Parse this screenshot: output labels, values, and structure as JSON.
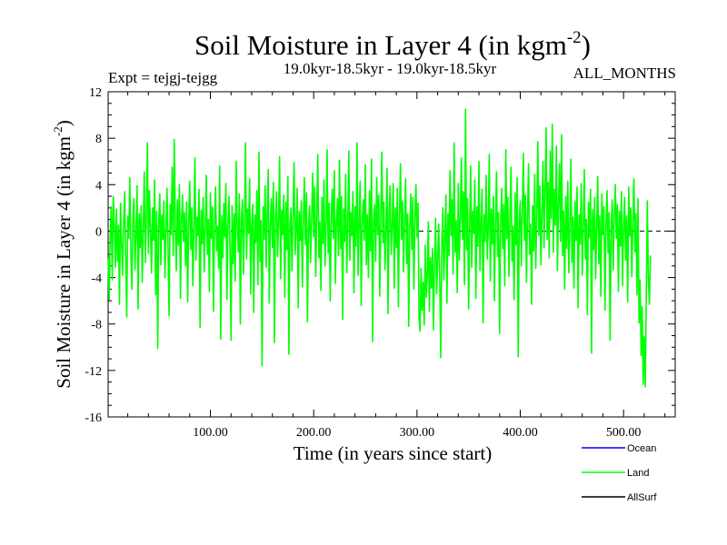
{
  "chart_data": {
    "type": "line",
    "title_main": "Soil Moisture in Layer 4 (in kgm",
    "title_sup": "-2",
    "title_close": ")",
    "subtitle_left": "Expt = tejgj-tejgg",
    "subtitle_center": "19.0kyr-18.5kyr - 19.0kyr-18.5kyr",
    "subtitle_right": "ALL_MONTHS",
    "xlabel": "Time (in years since start)",
    "ylabel_main": "Soil Moisture in Layer 4 (in kgm",
    "ylabel_sup": "-2",
    "ylabel_close": ")",
    "xlim": [
      1,
      550
    ],
    "ylim": [
      -16,
      12
    ],
    "x_ticks": [
      100,
      200,
      300,
      400,
      500
    ],
    "x_tick_labels": [
      "100.00",
      "200.00",
      "300.00",
      "400.00",
      "500.00"
    ],
    "y_ticks": [
      12,
      8,
      4,
      0,
      -4,
      -8,
      -12,
      -16
    ],
    "y_tick_labels": [
      "12",
      "8",
      "4",
      "0",
      "-4",
      "-8",
      "-12",
      "-16"
    ],
    "zero_line": "dashed",
    "legend": [
      {
        "name": "Ocean",
        "color": "#0000ff"
      },
      {
        "name": "Land",
        "color": "#00ff00"
      },
      {
        "name": "AllSurf",
        "color": "#000000"
      }
    ],
    "series": [
      {
        "name": "Land",
        "color": "#00ff00",
        "x_start": 1,
        "x_step": 1,
        "values": [
          -2.4,
          -5.9,
          -0.4,
          2.1,
          -4.2,
          3.0,
          0.8,
          -3.1,
          1.9,
          -2.6,
          0.5,
          -6.3,
          2.4,
          -1.0,
          -3.8,
          0.7,
          3.4,
          -2.2,
          -7.4,
          1.3,
          -0.6,
          4.6,
          -1.8,
          -5.0,
          0.9,
          2.8,
          -3.3,
          -0.2,
          3.9,
          -6.7,
          1.5,
          -1.4,
          2.2,
          -4.4,
          0.3,
          5.1,
          -2.7,
          1.1,
          7.6,
          -1.9,
          3.5,
          0.2,
          -3.6,
          2.0,
          -0.8,
          4.4,
          -5.5,
          1.7,
          -10.1,
          0.6,
          3.2,
          -2.9,
          1.4,
          -0.7,
          2.6,
          -4.0,
          0.1,
          3.7,
          -1.5,
          -7.3,
          2.3,
          -0.3,
          5.5,
          -2.1,
          7.9,
          0.4,
          -3.4,
          2.7,
          -1.2,
          4.0,
          -5.8,
          0.8,
          3.1,
          -0.9,
          1.6,
          -3.0,
          2.5,
          -6.1,
          0.7,
          4.3,
          -1.6,
          2.0,
          -4.7,
          0.5,
          6.3,
          -2.5,
          1.2,
          -0.4,
          3.6,
          -8.3,
          1.8,
          -1.1,
          2.9,
          -3.5,
          0.2,
          4.8,
          -2.0,
          1.0,
          -5.2,
          3.3,
          -0.6,
          2.1,
          -6.9,
          0.9,
          3.8,
          -1.7,
          0.4,
          -3.2,
          5.6,
          -9.3,
          1.3,
          -2.3,
          2.4,
          -0.5,
          4.1,
          -5.9,
          0.6,
          3.0,
          -1.3,
          -9.4,
          2.2,
          -2.8,
          1.5,
          -4.3,
          6.0,
          0.3,
          -1.8,
          3.2,
          -8.0,
          1.1,
          2.7,
          -3.7,
          0.8,
          7.6,
          -2.4,
          1.9,
          -0.2,
          4.5,
          -5.4,
          0.5,
          2.3,
          -7.0,
          1.4,
          -1.0,
          3.5,
          -4.6,
          6.8,
          -2.6,
          0.9,
          -11.6,
          2.1,
          -0.7,
          3.9,
          -3.1,
          1.6,
          5.3,
          -6.2,
          0.4,
          2.8,
          -1.4,
          4.2,
          -9.6,
          1.0,
          3.4,
          -2.2,
          0.7,
          6.4,
          -4.1,
          1.8,
          -0.3,
          3.1,
          -5.7,
          2.5,
          -1.6,
          4.7,
          -10.6,
          0.6,
          2.0,
          -3.4,
          1.3,
          5.9,
          -2.0,
          0.2,
          3.7,
          -6.6,
          1.7,
          -0.8,
          2.6,
          -4.8,
          0.9,
          4.6,
          -1.2,
          3.3,
          -7.8,
          0.5,
          2.2,
          -2.7,
          1.1,
          5.0,
          -0.5,
          3.8,
          -3.9,
          1.5,
          6.6,
          -2.3,
          0.8,
          -5.1,
          2.9,
          -1.1,
          4.4,
          -3.0,
          0.3,
          7.0,
          -1.9,
          2.4,
          -6.0,
          1.2,
          3.6,
          -0.6,
          5.2,
          -4.5,
          0.7,
          2.8,
          -2.1,
          6.1,
          -1.5,
          3.0,
          -7.6,
          1.9,
          -0.9,
          4.9,
          -3.6,
          0.4,
          6.9,
          -2.5,
          1.6,
          -0.4,
          3.4,
          -5.3,
          2.1,
          -1.3,
          7.6,
          -3.8,
          0.6,
          4.3,
          -6.4,
          1.0,
          2.7,
          -0.8,
          5.7,
          -2.9,
          1.4,
          -4.0,
          3.5,
          -1.7,
          6.2,
          -9.5,
          0.8,
          2.3,
          -2.6,
          4.6,
          -0.3,
          3.1,
          -5.6,
          1.3,
          6.8,
          -1.0,
          2.5,
          -3.3,
          0.2,
          5.4,
          -7.1,
          1.7,
          3.9,
          -2.0,
          0.5,
          4.1,
          -4.9,
          2.0,
          -1.4,
          3.7,
          -6.5,
          1.1,
          5.8,
          -0.7,
          2.6,
          -3.5,
          0.9,
          4.5,
          -2.8,
          1.5,
          -8.2,
          0.3,
          3.2,
          -1.6,
          2.9,
          -5.0,
          1.0,
          4.0,
          -0.5,
          2.4,
          -7.5,
          -8.6,
          -3.2,
          -6.8,
          -4.4,
          -8.1,
          -1.2,
          -5.7,
          -3.6,
          0.8,
          -6.9,
          -2.3,
          -4.9,
          -1.5,
          -8.5,
          -3.0,
          1.1,
          -5.4,
          -2.7,
          0.6,
          -3.9,
          -10.9,
          -1.4,
          2.0,
          -4.2,
          -0.9,
          3.1,
          -6.2,
          1.5,
          -2.1,
          5.2,
          -0.4,
          2.7,
          -3.7,
          7.6,
          -1.8,
          0.9,
          -5.3,
          4.1,
          -2.5,
          1.2,
          6.3,
          -0.7,
          3.4,
          -4.6,
          10.5,
          -1.6,
          2.8,
          -6.7,
          0.4,
          5.6,
          -3.1,
          1.7,
          -0.2,
          4.4,
          -5.8,
          2.1,
          -1.3,
          6.0,
          -3.4,
          0.7,
          3.6,
          -7.9,
          1.4,
          -0.9,
          4.8,
          -2.4,
          0.3,
          6.6,
          -4.3,
          1.9,
          -1.1,
          3.0,
          -6.0,
          0.8,
          5.1,
          -2.2,
          1.6,
          -8.8,
          0.5,
          3.7,
          -1.5,
          2.3,
          -4.7,
          7.0,
          -0.6,
          2.9,
          -3.9,
          1.2,
          5.5,
          -2.6,
          0.4,
          -5.9,
          3.3,
          -1.2,
          4.6,
          -10.8,
          0.9,
          2.6,
          -3.0,
          1.8,
          6.7,
          -0.8,
          3.1,
          -4.4,
          1.3,
          5.8,
          -2.0,
          0.6,
          -6.3,
          2.2,
          -1.7,
          4.9,
          -3.2,
          1.0,
          7.7,
          -0.4,
          3.9,
          -2.9,
          1.5,
          6.0,
          -1.4,
          3.3,
          8.9,
          -0.7,
          4.2,
          -2.3,
          6.9,
          1.1,
          9.2,
          -1.8,
          3.6,
          0.5,
          7.3,
          -3.4,
          2.4,
          5.8,
          -0.9,
          8.3,
          -2.1,
          1.7,
          -5.0,
          3.0,
          -1.5,
          4.3,
          -3.6,
          0.7,
          6.2,
          -2.7,
          1.2,
          -4.9,
          2.6,
          -0.8,
          3.8,
          -6.6,
          1.4,
          -1.1,
          4.1,
          -3.8,
          0.3,
          5.3,
          -2.4,
          1.0,
          -7.2,
          2.5,
          -0.5,
          3.6,
          -10.5,
          1.8,
          -1.6,
          2.9,
          -4.1,
          0.6,
          4.7,
          -2.8,
          1.3,
          -5.6,
          3.2,
          -0.3,
          2.1,
          -6.8,
          0.8,
          3.5,
          -1.9,
          1.6,
          -9.4,
          0.4,
          2.7,
          -3.3,
          1.1,
          4.0,
          -0.6,
          2.3,
          -5.2,
          1.7,
          -1.3,
          3.4,
          -4.7,
          0.5,
          2.9,
          -2.5,
          1.3,
          -6.1,
          3.8,
          -0.4,
          2.0,
          -3.9,
          0.9,
          4.5,
          -1.8,
          1.5,
          -5.5,
          2.8,
          -7.9,
          -4.2,
          -10.7,
          -6.5,
          -13.2,
          -9.1,
          -13.4,
          -5.8,
          2.6,
          -4.0,
          -6.3,
          -2.1
        ]
      }
    ]
  }
}
